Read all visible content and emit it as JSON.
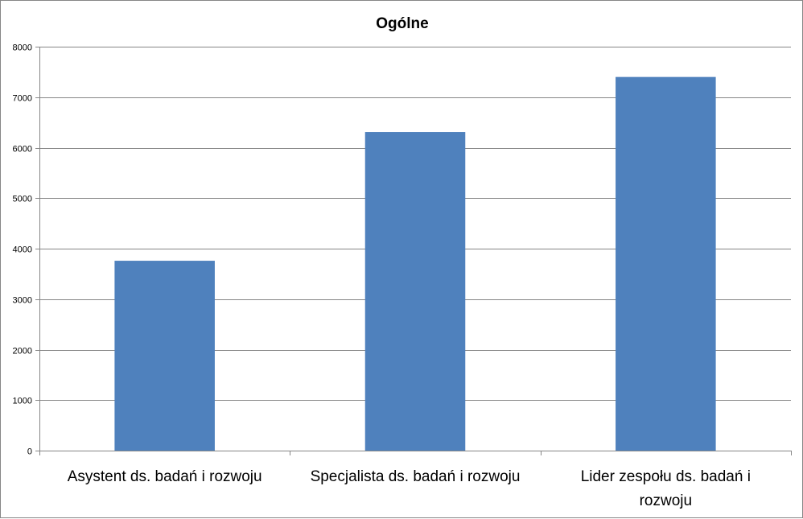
{
  "chart_data": {
    "type": "bar",
    "title": "Ogólne",
    "categories": [
      [
        "Asystent ds. badań i rozwoju"
      ],
      [
        "Specjalista ds. badań i rozwoju"
      ],
      [
        "Lider zespołu ds. badań i",
        "rozwoju"
      ]
    ],
    "values": [
      3760,
      6310,
      7400
    ],
    "xlabel": "",
    "ylabel": "",
    "ylim": [
      0,
      8000
    ],
    "yticks": [
      "0",
      "1000",
      "2000",
      "3000",
      "4000",
      "5000",
      "6000",
      "7000",
      "8000"
    ],
    "grid": true,
    "legend": "none",
    "bar_color": "#4f81bd",
    "grid_color": "#868686"
  }
}
